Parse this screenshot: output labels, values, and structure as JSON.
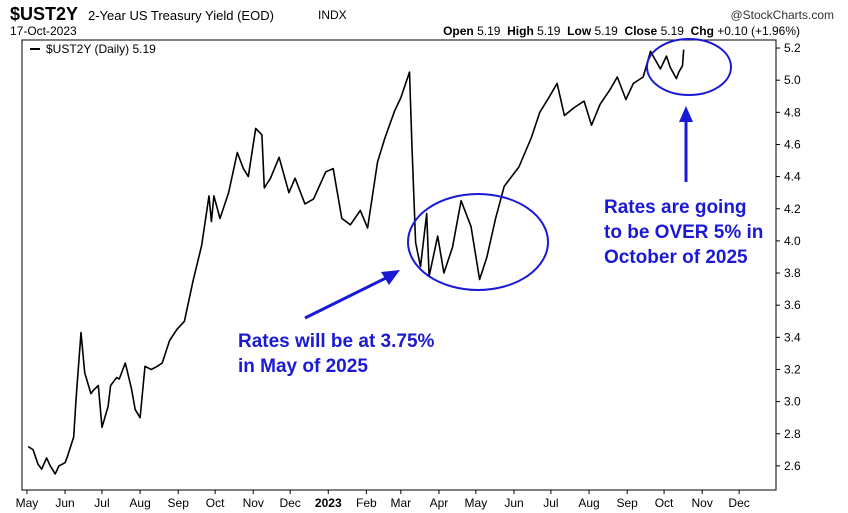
{
  "header": {
    "ticker": "$UST2Y",
    "subtitle": "2-Year US Treasury Yield (EOD)",
    "exchange": "INDX",
    "date": "17-Oct-2023",
    "watermark": "@StockCharts.com",
    "open_label": "Open",
    "open": "5.19",
    "high_label": "High",
    "high": "5.19",
    "low_label": "Low",
    "low": "5.19",
    "close_label": "Close",
    "close": "5.19",
    "chg_label": "Chg",
    "chg": "+0.10 (+1.96%)"
  },
  "chart_data": {
    "type": "line",
    "legend": "$UST2Y (Daily) 5.19",
    "x_ticks": [
      "May",
      "Jun",
      "Jul",
      "Aug",
      "Sep",
      "Oct",
      "Nov",
      "Dec",
      "2023",
      "Feb",
      "Mar",
      "Apr",
      "May",
      "Jun",
      "Jul",
      "Aug",
      "Sep",
      "Oct",
      "Nov",
      "Dec"
    ],
    "y_ticks": [
      2.6,
      2.8,
      3.0,
      3.2,
      3.4,
      3.6,
      3.8,
      4.0,
      4.2,
      4.4,
      4.6,
      4.8,
      5.0,
      5.2
    ],
    "ylim": [
      2.45,
      5.25
    ],
    "grid": false,
    "series": [
      {
        "name": "$UST2Y (Daily)",
        "values": [
          [
            "2022-05-02",
            2.72
          ],
          [
            "2022-05-06",
            2.7
          ],
          [
            "2022-05-10",
            2.61
          ],
          [
            "2022-05-13",
            2.58
          ],
          [
            "2022-05-17",
            2.65
          ],
          [
            "2022-05-20",
            2.6
          ],
          [
            "2022-05-24",
            2.55
          ],
          [
            "2022-05-27",
            2.6
          ],
          [
            "2022-06-01",
            2.62
          ],
          [
            "2022-06-03",
            2.66
          ],
          [
            "2022-06-08",
            2.78
          ],
          [
            "2022-06-10",
            3.02
          ],
          [
            "2022-06-14",
            3.43
          ],
          [
            "2022-06-17",
            3.18
          ],
          [
            "2022-06-22",
            3.05
          ],
          [
            "2022-06-24",
            3.07
          ],
          [
            "2022-06-28",
            3.1
          ],
          [
            "2022-07-01",
            2.84
          ],
          [
            "2022-07-06",
            2.97
          ],
          [
            "2022-07-08",
            3.1
          ],
          [
            "2022-07-13",
            3.15
          ],
          [
            "2022-07-15",
            3.14
          ],
          [
            "2022-07-20",
            3.24
          ],
          [
            "2022-07-25",
            3.08
          ],
          [
            "2022-07-28",
            2.95
          ],
          [
            "2022-08-01",
            2.9
          ],
          [
            "2022-08-05",
            3.22
          ],
          [
            "2022-08-10",
            3.2
          ],
          [
            "2022-08-15",
            3.22
          ],
          [
            "2022-08-19",
            3.24
          ],
          [
            "2022-08-25",
            3.38
          ],
          [
            "2022-08-31",
            3.45
          ],
          [
            "2022-09-06",
            3.5
          ],
          [
            "2022-09-13",
            3.75
          ],
          [
            "2022-09-20",
            3.97
          ],
          [
            "2022-09-26",
            4.28
          ],
          [
            "2022-09-28",
            4.12
          ],
          [
            "2022-09-30",
            4.28
          ],
          [
            "2022-10-05",
            4.14
          ],
          [
            "2022-10-12",
            4.3
          ],
          [
            "2022-10-19",
            4.55
          ],
          [
            "2022-10-24",
            4.45
          ],
          [
            "2022-10-28",
            4.4
          ],
          [
            "2022-11-03",
            4.7
          ],
          [
            "2022-11-08",
            4.66
          ],
          [
            "2022-11-10",
            4.33
          ],
          [
            "2022-11-15",
            4.39
          ],
          [
            "2022-11-22",
            4.52
          ],
          [
            "2022-11-30",
            4.3
          ],
          [
            "2022-12-05",
            4.39
          ],
          [
            "2022-12-13",
            4.23
          ],
          [
            "2022-12-20",
            4.26
          ],
          [
            "2022-12-30",
            4.43
          ],
          [
            "2023-01-05",
            4.45
          ],
          [
            "2023-01-12",
            4.14
          ],
          [
            "2023-01-19",
            4.1
          ],
          [
            "2023-01-27",
            4.19
          ],
          [
            "2023-02-02",
            4.08
          ],
          [
            "2023-02-10",
            4.49
          ],
          [
            "2023-02-16",
            4.64
          ],
          [
            "2023-02-24",
            4.81
          ],
          [
            "2023-03-01",
            4.89
          ],
          [
            "2023-03-08",
            5.05
          ],
          [
            "2023-03-10",
            4.6
          ],
          [
            "2023-03-13",
            3.99
          ],
          [
            "2023-03-17",
            3.84
          ],
          [
            "2023-03-22",
            4.17
          ],
          [
            "2023-03-24",
            3.78
          ],
          [
            "2023-03-31",
            4.03
          ],
          [
            "2023-04-05",
            3.8
          ],
          [
            "2023-04-12",
            3.96
          ],
          [
            "2023-04-19",
            4.25
          ],
          [
            "2023-04-27",
            4.09
          ],
          [
            "2023-05-04",
            3.76
          ],
          [
            "2023-05-10",
            3.9
          ],
          [
            "2023-05-17",
            4.14
          ],
          [
            "2023-05-24",
            4.34
          ],
          [
            "2023-05-31",
            4.41
          ],
          [
            "2023-06-05",
            4.46
          ],
          [
            "2023-06-15",
            4.64
          ],
          [
            "2023-06-22",
            4.8
          ],
          [
            "2023-06-30",
            4.9
          ],
          [
            "2023-07-06",
            4.98
          ],
          [
            "2023-07-12",
            4.78
          ],
          [
            "2023-07-20",
            4.83
          ],
          [
            "2023-07-28",
            4.87
          ],
          [
            "2023-08-03",
            4.72
          ],
          [
            "2023-08-10",
            4.85
          ],
          [
            "2023-08-18",
            4.94
          ],
          [
            "2023-08-24",
            5.02
          ],
          [
            "2023-08-31",
            4.88
          ],
          [
            "2023-09-06",
            4.98
          ],
          [
            "2023-09-14",
            5.02
          ],
          [
            "2023-09-20",
            5.18
          ],
          [
            "2023-09-28",
            5.07
          ],
          [
            "2023-10-03",
            5.15
          ],
          [
            "2023-10-06",
            5.08
          ],
          [
            "2023-10-11",
            5.01
          ],
          [
            "2023-10-13",
            5.05
          ],
          [
            "2023-10-16",
            5.09
          ],
          [
            "2023-10-17",
            5.19
          ]
        ]
      }
    ],
    "annotations": [
      {
        "lines": [
          "Rates will be at 3.75%",
          "in May of 2025"
        ]
      },
      {
        "lines": [
          "Rates are going",
          "to be OVER 5% in",
          "October of 2025"
        ]
      }
    ],
    "colors": {
      "line": "#000000",
      "annotation": "#1a1ad6"
    }
  }
}
